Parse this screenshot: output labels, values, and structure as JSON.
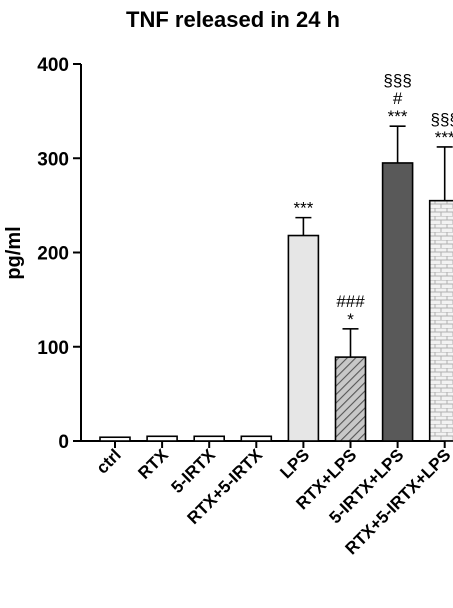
{
  "chart_data": {
    "type": "bar",
    "title": "TNF released in 24 h",
    "xlabel": "",
    "ylabel": "pg/ml",
    "ylim": [
      0,
      400
    ],
    "yticks": [
      0,
      100,
      200,
      300,
      400
    ],
    "grid": false,
    "legend": "none",
    "categories": [
      "ctrl",
      "RTX",
      "5-IRTX",
      "RTX+5-IRTX",
      "LPS",
      "RTX+LPS",
      "5-IRTX+LPS",
      "RTX+5-IRTX+LPS"
    ],
    "values": [
      4,
      5,
      5,
      5,
      218,
      89,
      295,
      255
    ],
    "error": [
      0,
      0,
      0,
      0,
      19,
      30,
      39,
      57
    ],
    "annotations": [
      [],
      [],
      [],
      [],
      [
        "***"
      ],
      [
        "###",
        "*"
      ],
      [
        "§§§",
        "#",
        "***"
      ],
      [
        "§§§",
        "***"
      ]
    ],
    "fills": [
      "white",
      "white",
      "white",
      "white",
      "light-gray",
      "diagonal-hatch",
      "dark-gray",
      "brick-pattern"
    ],
    "colors": {
      "axis": "#000000",
      "bar_stroke": "#000000",
      "light_gray": "#e6e6e6",
      "dark_gray": "#595959",
      "hatch_bg": "#c8c8c8",
      "hatch_line": "#555555",
      "brick_bg": "#f2f2f2",
      "brick_line": "#b0b0b0"
    }
  }
}
